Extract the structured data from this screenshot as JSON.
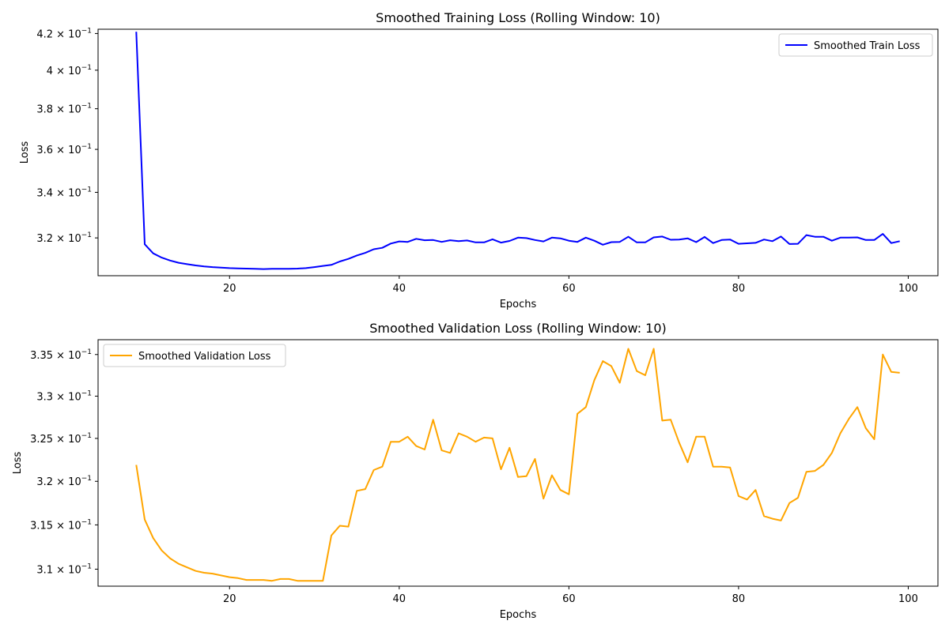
{
  "chart_data": [
    {
      "type": "line",
      "title": "Smoothed Training Loss (Rolling Window: 10)",
      "xlabel": "Epochs",
      "ylabel": "Loss",
      "yscale": "log",
      "xlim": [
        4.5,
        103.5
      ],
      "ylim": [
        0.3043,
        0.4224
      ],
      "grid": false,
      "legend": "top-right",
      "xticks": [
        {
          "value": 20,
          "label": "20"
        },
        {
          "value": 40,
          "label": "40"
        },
        {
          "value": 60,
          "label": "60"
        },
        {
          "value": 80,
          "label": "80"
        },
        {
          "value": 100,
          "label": "100"
        }
      ],
      "yticks": [
        {
          "value": 0.32,
          "base": "3.2 × 10",
          "exp": "−1"
        },
        {
          "value": 0.34,
          "base": "3.4 × 10",
          "exp": "−1"
        },
        {
          "value": 0.36,
          "base": "3.6 × 10",
          "exp": "−1"
        },
        {
          "value": 0.38,
          "base": "3.8 × 10",
          "exp": "−1"
        },
        {
          "value": 0.4,
          "base": "4 × 10",
          "exp": "−1"
        },
        {
          "value": 0.42,
          "base": "4.2 × 10",
          "exp": "−1"
        }
      ],
      "series": [
        {
          "name": "Smoothed Train Loss",
          "color": "#0000ff",
          "x": [
            9,
            10,
            11,
            12,
            13,
            14,
            15,
            16,
            17,
            18,
            19,
            20,
            21,
            22,
            23,
            24,
            25,
            26,
            27,
            28,
            29,
            30,
            31,
            32,
            33,
            34,
            35,
            36,
            37,
            38,
            39,
            40,
            41,
            42,
            43,
            44,
            45,
            46,
            47,
            48,
            49,
            50,
            51,
            52,
            53,
            54,
            55,
            56,
            57,
            58,
            59,
            60,
            61,
            62,
            63,
            64,
            65,
            66,
            67,
            68,
            69,
            70,
            71,
            72,
            73,
            74,
            75,
            76,
            77,
            78,
            79,
            80,
            81,
            82,
            83,
            84,
            85,
            86,
            87,
            88,
            89,
            90,
            91,
            92,
            93,
            94,
            95,
            96,
            97,
            98,
            99
          ],
          "values": [
            0.421,
            0.3173,
            0.3135,
            0.3117,
            0.3105,
            0.3096,
            0.309,
            0.3085,
            0.3081,
            0.3078,
            0.3076,
            0.3074,
            0.3073,
            0.3072,
            0.3071,
            0.307,
            0.3071,
            0.3071,
            0.3071,
            0.3072,
            0.3074,
            0.3078,
            0.3083,
            0.3087,
            0.3101,
            0.3112,
            0.3126,
            0.3137,
            0.3152,
            0.3158,
            0.3176,
            0.3185,
            0.3183,
            0.3196,
            0.319,
            0.3191,
            0.3183,
            0.319,
            0.3186,
            0.3189,
            0.3181,
            0.3181,
            0.3194,
            0.318,
            0.3187,
            0.3201,
            0.3199,
            0.3191,
            0.3185,
            0.3201,
            0.3198,
            0.3188,
            0.3183,
            0.3201,
            0.3188,
            0.3171,
            0.3182,
            0.3183,
            0.3205,
            0.3181,
            0.3181,
            0.3202,
            0.3206,
            0.3192,
            0.3193,
            0.3198,
            0.3182,
            0.3204,
            0.3178,
            0.3191,
            0.3193,
            0.3175,
            0.3177,
            0.3179,
            0.3193,
            0.3186,
            0.3206,
            0.3174,
            0.3175,
            0.3212,
            0.3205,
            0.3205,
            0.3188,
            0.3201,
            0.3201,
            0.3202,
            0.3191,
            0.3191,
            0.3217,
            0.3178,
            0.3186
          ]
        }
      ]
    },
    {
      "type": "line",
      "title": "Smoothed Validation Loss (Rolling Window: 10)",
      "xlabel": "Epochs",
      "ylabel": "Loss",
      "yscale": "log",
      "xlim": [
        4.5,
        103.5
      ],
      "ylim": [
        0.3081,
        0.3368
      ],
      "grid": false,
      "legend": "top-left",
      "xticks": [
        {
          "value": 20,
          "label": "20"
        },
        {
          "value": 40,
          "label": "40"
        },
        {
          "value": 60,
          "label": "60"
        },
        {
          "value": 80,
          "label": "80"
        },
        {
          "value": 100,
          "label": "100"
        }
      ],
      "yticks": [
        {
          "value": 0.31,
          "base": "3.1 × 10",
          "exp": "−1"
        },
        {
          "value": 0.315,
          "base": "3.15 × 10",
          "exp": "−1"
        },
        {
          "value": 0.32,
          "base": "3.2 × 10",
          "exp": "−1"
        },
        {
          "value": 0.325,
          "base": "3.25 × 10",
          "exp": "−1"
        },
        {
          "value": 0.33,
          "base": "3.3 × 10",
          "exp": "−1"
        },
        {
          "value": 0.335,
          "base": "3.35 × 10",
          "exp": "−1"
        }
      ],
      "series": [
        {
          "name": "Smoothed Validation Loss",
          "color": "#ffa500",
          "x": [
            9,
            10,
            11,
            12,
            13,
            14,
            15,
            16,
            17,
            18,
            19,
            20,
            21,
            22,
            23,
            24,
            25,
            26,
            27,
            28,
            29,
            30,
            31,
            32,
            33,
            34,
            35,
            36,
            37,
            38,
            39,
            40,
            41,
            42,
            43,
            44,
            45,
            46,
            47,
            48,
            49,
            50,
            51,
            52,
            53,
            54,
            55,
            56,
            57,
            58,
            59,
            60,
            61,
            62,
            63,
            64,
            65,
            66,
            67,
            68,
            69,
            70,
            71,
            72,
            73,
            74,
            75,
            76,
            77,
            78,
            79,
            80,
            81,
            82,
            83,
            84,
            85,
            86,
            87,
            88,
            89,
            90,
            91,
            92,
            93,
            94,
            95,
            96,
            97,
            98,
            99
          ],
          "values": [
            0.3219,
            0.3156,
            0.3135,
            0.3121,
            0.3112,
            0.3106,
            0.3102,
            0.3098,
            0.3096,
            0.3095,
            0.3093,
            0.3091,
            0.309,
            0.3088,
            0.3088,
            0.3088,
            0.3087,
            0.3089,
            0.3089,
            0.3087,
            0.3087,
            0.3087,
            0.3087,
            0.3138,
            0.3149,
            0.3148,
            0.3189,
            0.3191,
            0.3213,
            0.3217,
            0.3246,
            0.3246,
            0.3252,
            0.3241,
            0.3237,
            0.3272,
            0.3236,
            0.3233,
            0.3256,
            0.3252,
            0.3246,
            0.3251,
            0.325,
            0.3214,
            0.3239,
            0.3205,
            0.3206,
            0.3226,
            0.318,
            0.3207,
            0.319,
            0.3185,
            0.3279,
            0.3287,
            0.3319,
            0.3342,
            0.3336,
            0.3316,
            0.3357,
            0.333,
            0.3325,
            0.3357,
            0.3271,
            0.3272,
            0.3245,
            0.3222,
            0.3252,
            0.3252,
            0.3217,
            0.3217,
            0.3216,
            0.3183,
            0.3179,
            0.319,
            0.316,
            0.3157,
            0.3155,
            0.3175,
            0.3181,
            0.3211,
            0.3212,
            0.3219,
            0.3233,
            0.3256,
            0.3273,
            0.3287,
            0.3262,
            0.3249,
            0.335,
            0.3329,
            0.3328
          ]
        }
      ]
    }
  ]
}
